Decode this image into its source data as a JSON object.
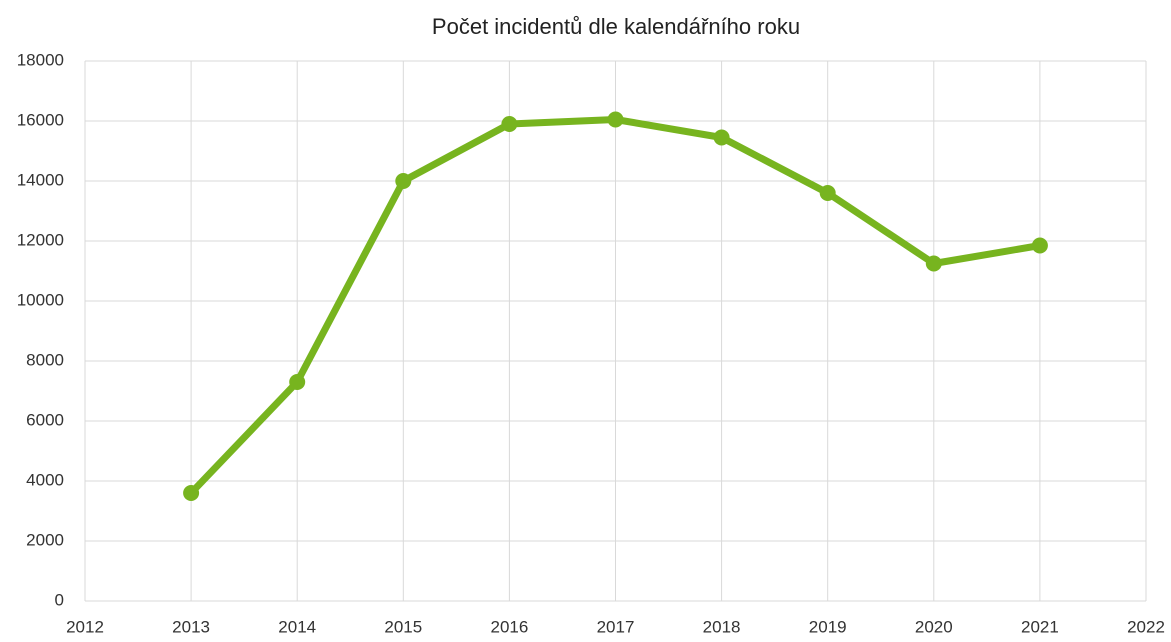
{
  "chart_data": {
    "type": "line",
    "title": "Počet incidentů dle kalendářního roku",
    "x": [
      2013,
      2014,
      2015,
      2016,
      2017,
      2018,
      2019,
      2020,
      2021
    ],
    "series": [
      {
        "name": "Počet incidentů",
        "color": "#77b41f",
        "values": [
          3600,
          7300,
          14000,
          15900,
          16050,
          15450,
          13600,
          11250,
          11850
        ]
      }
    ],
    "xlim": [
      2012,
      2022
    ],
    "xticks": [
      2012,
      2013,
      2014,
      2015,
      2016,
      2017,
      2018,
      2019,
      2020,
      2021,
      2022
    ],
    "ylim": [
      0,
      18000
    ],
    "yticks": [
      0,
      2000,
      4000,
      6000,
      8000,
      10000,
      12000,
      14000,
      16000,
      18000
    ],
    "grid": true,
    "legend": false
  }
}
